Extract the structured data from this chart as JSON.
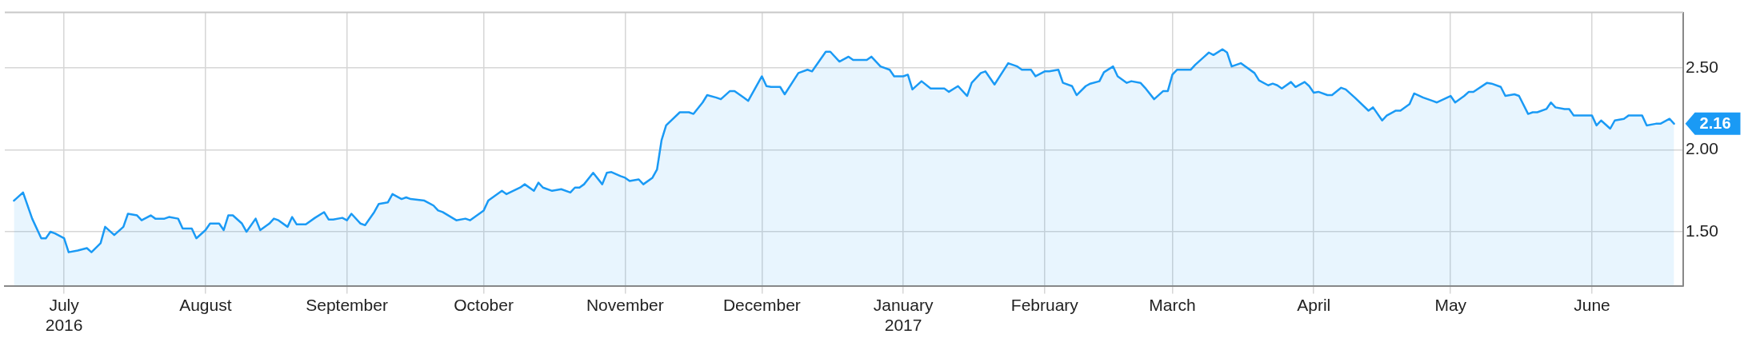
{
  "chart_data": {
    "type": "area",
    "legend": false,
    "grid": true,
    "marker": "none",
    "line_style": "solid",
    "xlim": [
      "2016-06-18",
      "2017-06-21"
    ],
    "xticks": [
      {
        "value": "2016-07-01",
        "label": "July\n2016"
      },
      {
        "value": "2016-08-01",
        "label": "August"
      },
      {
        "value": "2016-09-01",
        "label": "September"
      },
      {
        "value": "2016-10-01",
        "label": "October"
      },
      {
        "value": "2016-11-01",
        "label": "November"
      },
      {
        "value": "2016-12-01",
        "label": "December"
      },
      {
        "value": "2017-01-01",
        "label": "January\n2017"
      },
      {
        "value": "2017-02-01",
        "label": "February"
      },
      {
        "value": "2017-03-01",
        "label": "March"
      },
      {
        "value": "2017-04-01",
        "label": "April"
      },
      {
        "value": "2017-05-01",
        "label": "May"
      },
      {
        "value": "2017-06-01",
        "label": "June"
      }
    ],
    "ylim": [
      1.17,
      2.84
    ],
    "yticks": [
      {
        "value": 1.5,
        "label": "1.50"
      },
      {
        "value": 2,
        "label": "2.00"
      },
      {
        "value": 2.5,
        "label": "2.50"
      }
    ],
    "annotations": [
      {
        "text": "2.16",
        "x": "2017-06-19",
        "y": 2.16
      }
    ],
    "x": [
      "2016-06-20",
      "2016-06-22",
      "2016-06-24",
      "2016-06-26",
      "2016-06-27",
      "2016-06-28",
      "2016-06-29",
      "2016-07-01",
      "2016-07-02",
      "2016-07-04",
      "2016-07-06",
      "2016-07-07",
      "2016-07-09",
      "2016-07-10",
      "2016-07-12",
      "2016-07-14",
      "2016-07-15",
      "2016-07-17",
      "2016-07-18",
      "2016-07-20",
      "2016-07-21",
      "2016-07-23",
      "2016-07-24",
      "2016-07-26",
      "2016-07-27",
      "2016-07-29",
      "2016-07-30",
      "2016-08-01",
      "2016-08-02",
      "2016-08-04",
      "2016-08-05",
      "2016-08-06",
      "2016-08-07",
      "2016-08-09",
      "2016-08-10",
      "2016-08-12",
      "2016-08-13",
      "2016-08-15",
      "2016-08-16",
      "2016-08-17",
      "2016-08-19",
      "2016-08-20",
      "2016-08-21",
      "2016-08-23",
      "2016-08-25",
      "2016-08-27",
      "2016-08-28",
      "2016-08-29",
      "2016-08-31",
      "2016-09-01",
      "2016-09-02",
      "2016-09-04",
      "2016-09-05",
      "2016-09-07",
      "2016-09-08",
      "2016-09-10",
      "2016-09-11",
      "2016-09-13",
      "2016-09-14",
      "2016-09-15",
      "2016-09-18",
      "2016-09-20",
      "2016-09-21",
      "2016-09-22",
      "2016-09-25",
      "2016-09-27",
      "2016-09-28",
      "2016-10-01",
      "2016-10-02",
      "2016-10-05",
      "2016-10-06",
      "2016-10-09",
      "2016-10-10",
      "2016-10-12",
      "2016-10-13",
      "2016-10-14",
      "2016-10-16",
      "2016-10-18",
      "2016-10-20",
      "2016-10-21",
      "2016-10-22",
      "2016-10-23",
      "2016-10-25",
      "2016-10-27",
      "2016-10-28",
      "2016-10-29",
      "2016-10-31",
      "2016-11-01",
      "2016-11-02",
      "2016-11-04",
      "2016-11-05",
      "2016-11-07",
      "2016-11-08",
      "2016-11-09",
      "2016-11-10",
      "2016-11-13",
      "2016-11-15",
      "2016-11-16",
      "2016-11-18",
      "2016-11-19",
      "2016-11-21",
      "2016-11-22",
      "2016-11-24",
      "2016-11-25",
      "2016-11-27",
      "2016-11-28",
      "2016-12-01",
      "2016-12-02",
      "2016-12-03",
      "2016-12-05",
      "2016-12-06",
      "2016-12-09",
      "2016-12-11",
      "2016-12-12",
      "2016-12-15",
      "2016-12-16",
      "2016-12-18",
      "2016-12-20",
      "2016-12-21",
      "2016-12-24",
      "2016-12-25",
      "2016-12-27",
      "2016-12-29",
      "2016-12-30",
      "2017-01-01",
      "2017-01-02",
      "2017-01-03",
      "2017-01-05",
      "2017-01-07",
      "2017-01-10",
      "2017-01-11",
      "2017-01-13",
      "2017-01-15",
      "2017-01-16",
      "2017-01-18",
      "2017-01-19",
      "2017-01-21",
      "2017-01-24",
      "2017-01-26",
      "2017-01-27",
      "2017-01-29",
      "2017-01-30",
      "2017-02-01",
      "2017-02-02",
      "2017-02-04",
      "2017-02-05",
      "2017-02-07",
      "2017-02-08",
      "2017-02-10",
      "2017-02-11",
      "2017-02-13",
      "2017-02-14",
      "2017-02-16",
      "2017-02-17",
      "2017-02-19",
      "2017-02-20",
      "2017-02-22",
      "2017-02-23",
      "2017-02-25",
      "2017-02-27",
      "2017-02-28",
      "2017-03-01",
      "2017-03-02",
      "2017-03-05",
      "2017-03-06",
      "2017-03-08",
      "2017-03-09",
      "2017-03-10",
      "2017-03-12",
      "2017-03-13",
      "2017-03-14",
      "2017-03-16",
      "2017-03-19",
      "2017-03-20",
      "2017-03-22",
      "2017-03-23",
      "2017-03-24",
      "2017-03-25",
      "2017-03-27",
      "2017-03-28",
      "2017-03-30",
      "2017-03-31",
      "2017-04-01",
      "2017-04-02",
      "2017-04-04",
      "2017-04-05",
      "2017-04-07",
      "2017-04-08",
      "2017-04-10",
      "2017-04-13",
      "2017-04-14",
      "2017-04-16",
      "2017-04-17",
      "2017-04-19",
      "2017-04-20",
      "2017-04-22",
      "2017-04-23",
      "2017-04-25",
      "2017-04-27",
      "2017-04-28",
      "2017-05-01",
      "2017-05-02",
      "2017-05-04",
      "2017-05-05",
      "2017-05-06",
      "2017-05-09",
      "2017-05-10",
      "2017-05-12",
      "2017-05-13",
      "2017-05-15",
      "2017-05-16",
      "2017-05-18",
      "2017-05-19",
      "2017-05-20",
      "2017-05-22",
      "2017-05-23",
      "2017-05-24",
      "2017-05-26",
      "2017-05-27",
      "2017-05-28",
      "2017-06-01",
      "2017-06-02",
      "2017-06-03",
      "2017-06-05",
      "2017-06-06",
      "2017-06-08",
      "2017-06-09",
      "2017-06-12",
      "2017-06-13",
      "2017-06-15",
      "2017-06-16",
      "2017-06-18",
      "2017-06-19"
    ],
    "series": [
      {
        "color": "#1a9af5",
        "values": [
          1.69,
          1.74,
          1.58,
          1.46,
          1.46,
          1.5,
          1.49,
          1.46,
          1.375,
          1.385,
          1.4,
          1.375,
          1.43,
          1.53,
          1.48,
          1.53,
          1.61,
          1.6,
          1.57,
          1.6,
          1.58,
          1.58,
          1.59,
          1.58,
          1.52,
          1.52,
          1.46,
          1.51,
          1.55,
          1.55,
          1.51,
          1.6,
          1.6,
          1.55,
          1.5,
          1.58,
          1.51,
          1.55,
          1.58,
          1.57,
          1.53,
          1.59,
          1.545,
          1.545,
          1.585,
          1.62,
          1.575,
          1.575,
          1.585,
          1.57,
          1.61,
          1.55,
          1.54,
          1.62,
          1.67,
          1.68,
          1.73,
          1.7,
          1.71,
          1.7,
          1.69,
          1.66,
          1.63,
          1.62,
          1.57,
          1.58,
          1.57,
          1.63,
          1.69,
          1.75,
          1.73,
          1.77,
          1.79,
          1.75,
          1.8,
          1.77,
          1.75,
          1.76,
          1.74,
          1.77,
          1.77,
          1.79,
          1.86,
          1.79,
          1.86,
          1.865,
          1.84,
          1.83,
          1.81,
          1.82,
          1.79,
          1.83,
          1.88,
          2.06,
          2.15,
          2.23,
          2.23,
          2.22,
          2.29,
          2.335,
          2.32,
          2.31,
          2.36,
          2.36,
          2.32,
          2.3,
          2.45,
          2.39,
          2.385,
          2.385,
          2.34,
          2.47,
          2.49,
          2.48,
          2.6,
          2.6,
          2.54,
          2.57,
          2.55,
          2.55,
          2.57,
          2.51,
          2.49,
          2.45,
          2.45,
          2.46,
          2.37,
          2.42,
          2.375,
          2.375,
          2.355,
          2.39,
          2.33,
          2.41,
          2.47,
          2.48,
          2.4,
          2.53,
          2.51,
          2.49,
          2.49,
          2.45,
          2.48,
          2.48,
          2.49,
          2.41,
          2.39,
          2.335,
          2.39,
          2.405,
          2.42,
          2.475,
          2.51,
          2.45,
          2.41,
          2.42,
          2.41,
          2.38,
          2.31,
          2.36,
          2.36,
          2.46,
          2.49,
          2.49,
          2.52,
          2.57,
          2.595,
          2.58,
          2.615,
          2.595,
          2.51,
          2.53,
          2.47,
          2.425,
          2.395,
          2.405,
          2.395,
          2.375,
          2.415,
          2.385,
          2.415,
          2.39,
          2.35,
          2.355,
          2.335,
          2.335,
          2.38,
          2.37,
          2.32,
          2.24,
          2.26,
          2.18,
          2.21,
          2.24,
          2.24,
          2.28,
          2.345,
          2.32,
          2.3,
          2.29,
          2.33,
          2.29,
          2.33,
          2.355,
          2.355,
          2.41,
          2.405,
          2.385,
          2.33,
          2.34,
          2.33,
          2.22,
          2.23,
          2.23,
          2.25,
          2.29,
          2.26,
          2.25,
          2.25,
          2.21,
          2.21,
          2.15,
          2.18,
          2.13,
          2.18,
          2.19,
          2.21,
          2.21,
          2.15,
          2.16,
          2.16,
          2.19,
          2.16
        ]
      }
    ]
  }
}
